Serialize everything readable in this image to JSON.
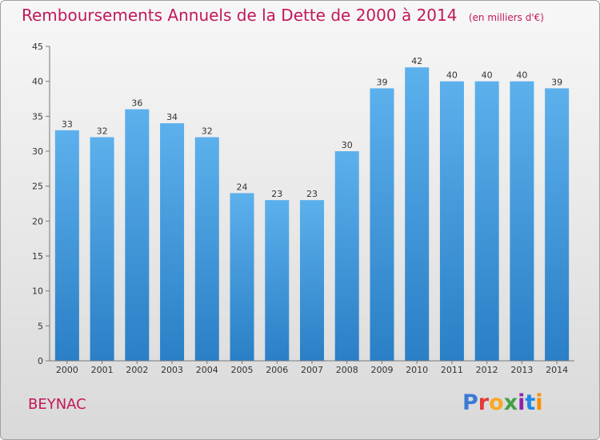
{
  "header": {
    "title": "Remboursements Annuels de la Dette de 2000 à 2014",
    "subtitle": "(en milliers d'€)"
  },
  "footer": {
    "city": "BEYNAC",
    "logo": "Proxiti",
    "logo_colors": [
      "#3a7bd5",
      "#e53935",
      "#f9a825",
      "#43a047",
      "#8e24aa",
      "#1e88e5",
      "#fb8c00"
    ]
  },
  "chart_data": {
    "type": "bar",
    "categories": [
      "2000",
      "2001",
      "2002",
      "2003",
      "2004",
      "2005",
      "2006",
      "2007",
      "2008",
      "2009",
      "2010",
      "2011",
      "2012",
      "2013",
      "2014"
    ],
    "values": [
      33,
      32,
      36,
      34,
      32,
      24,
      23,
      23,
      30,
      39,
      42,
      40,
      40,
      40,
      39
    ],
    "data_labels": [
      "33",
      "32",
      "36",
      "34",
      "32",
      "24",
      "23",
      "23",
      "30",
      "39",
      "42",
      "40",
      "40",
      "40",
      "39"
    ],
    "yticks": [
      0,
      5,
      10,
      15,
      20,
      25,
      30,
      35,
      40,
      45
    ],
    "ylim": [
      0,
      45
    ],
    "grid": false,
    "bar_color": "#4a9ee0"
  }
}
